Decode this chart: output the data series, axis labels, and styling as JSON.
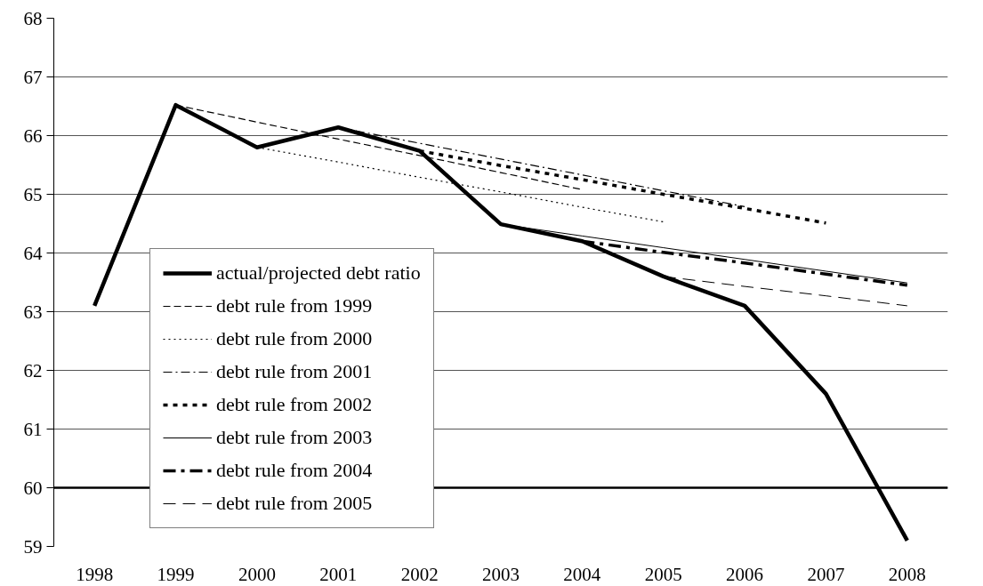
{
  "chart_data": {
    "type": "line",
    "xlim": [
      1997.5,
      2008.5
    ],
    "xticks": [
      1998,
      1999,
      2000,
      2001,
      2002,
      2003,
      2004,
      2005,
      2006,
      2007,
      2008
    ],
    "ylim": [
      59,
      68
    ],
    "yticks": [
      59,
      60,
      61,
      62,
      63,
      64,
      65,
      66,
      67,
      68
    ],
    "grid": "y",
    "legend": "bottom left",
    "marker": "none",
    "ref_lines": [
      {
        "axis": "y",
        "value": 60,
        "color": "#000000"
      }
    ],
    "series": [
      {
        "name": "actual/projected debt ratio",
        "color": "#000000",
        "line_style": "solid",
        "x": [
          1998,
          1999,
          2000,
          2001,
          2002,
          2003,
          2004,
          2005,
          2006,
          2007,
          2008
        ],
        "values": [
          63.1,
          66.52,
          65.8,
          66.14,
          65.74,
          64.49,
          64.2,
          63.6,
          63.1,
          61.6,
          59.1
        ]
      },
      {
        "name": "debt rule from 1999",
        "color": "#000000",
        "line_style": "dashed",
        "x": [
          1999,
          2000,
          2001,
          2002,
          2003,
          2004
        ],
        "values": [
          66.52,
          66.23,
          65.94,
          65.66,
          65.37,
          65.08
        ]
      },
      {
        "name": "debt rule from 2000",
        "color": "#000000",
        "line_style": "dotted",
        "x": [
          2000,
          2001,
          2002,
          2003,
          2004,
          2005
        ],
        "values": [
          65.8,
          65.55,
          65.29,
          65.04,
          64.78,
          64.53
        ]
      },
      {
        "name": "debt rule from 2001",
        "color": "#000000",
        "line_style": "dashdot",
        "x": [
          2001,
          2002,
          2003,
          2004,
          2005,
          2006
        ],
        "values": [
          66.14,
          65.87,
          65.6,
          65.33,
          65.06,
          64.79
        ]
      },
      {
        "name": "debt rule from 2002",
        "color": "#000000",
        "line_style": "dotted",
        "x": [
          2002,
          2003,
          2004,
          2005,
          2006,
          2007
        ],
        "values": [
          65.74,
          65.49,
          65.25,
          65.0,
          64.76,
          64.51
        ]
      },
      {
        "name": "debt rule from 2003",
        "color": "#000000",
        "line_style": "solid",
        "x": [
          2003,
          2004,
          2005,
          2006,
          2007,
          2008
        ],
        "values": [
          64.49,
          64.29,
          64.09,
          63.89,
          63.69,
          63.49
        ]
      },
      {
        "name": "debt rule from 2004",
        "color": "#000000",
        "line_style": "dashdot",
        "x": [
          2004,
          2005,
          2006,
          2007,
          2008
        ],
        "values": [
          64.2,
          64.01,
          63.83,
          63.64,
          63.45
        ]
      },
      {
        "name": "debt rule from 2005",
        "color": "#000000",
        "line_style": "longdash",
        "x": [
          2005,
          2006,
          2007,
          2008
        ],
        "values": [
          63.6,
          63.43,
          63.27,
          63.1
        ]
      }
    ]
  }
}
